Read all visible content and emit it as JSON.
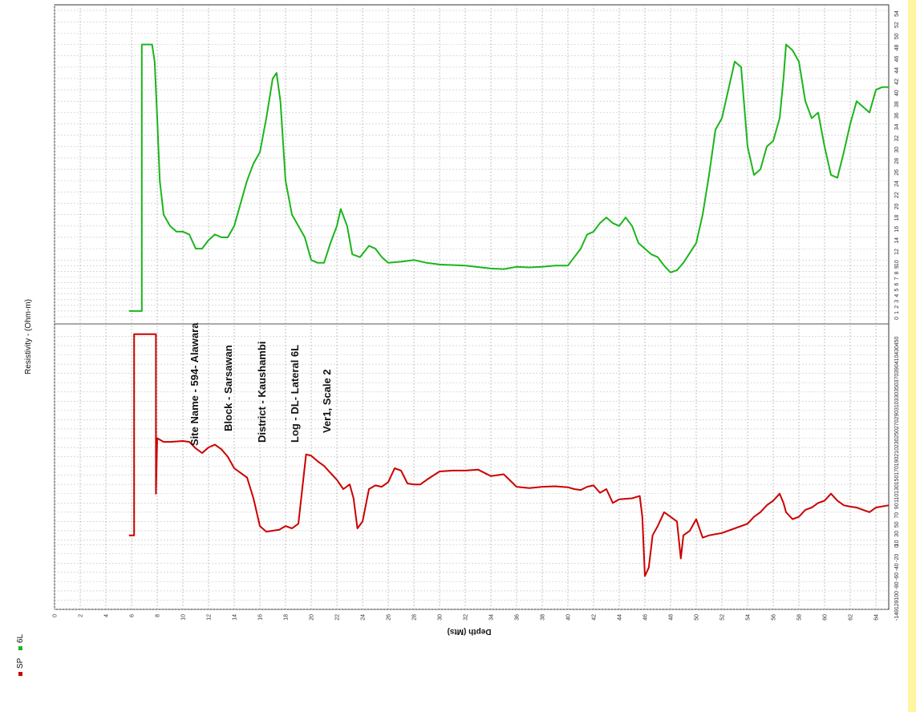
{
  "chart_data": {
    "type": "line",
    "orientation": "rotated-90-ccw",
    "xlabel": "Depth (Mts)",
    "x_ticks": [
      0,
      2,
      4,
      6,
      8,
      10,
      12,
      14,
      16,
      18,
      20,
      22,
      24,
      26,
      28,
      30,
      32,
      34,
      36,
      38,
      40,
      42,
      44,
      46,
      48,
      50,
      52,
      54,
      56,
      58,
      60,
      62,
      64
    ],
    "xlim": [
      0,
      65
    ],
    "legend": {
      "placement": "bottom-left",
      "entries": [
        {
          "name": "SP",
          "color": "#cc0000"
        },
        {
          "name": "6L",
          "color": "#1cb51c"
        }
      ]
    },
    "panels": [
      {
        "id": "resistivity",
        "ylabel": "Resistivity - (Ohm-m)",
        "ylim": [
          0,
          55
        ],
        "y_ticks": [
          0,
          1,
          2,
          3,
          4,
          5,
          6,
          7,
          8,
          9,
          10,
          12,
          14,
          16,
          18,
          20,
          22,
          24,
          26,
          28,
          30,
          32,
          34,
          36,
          38,
          40,
          42,
          44,
          46,
          48,
          50,
          52,
          54
        ],
        "series": [
          {
            "name": "6L",
            "color": "#1cb51c",
            "points": [
              [
                5.8,
                1
              ],
              [
                6.8,
                1
              ],
              [
                6.8,
                48
              ],
              [
                7.6,
                48
              ],
              [
                7.8,
                45
              ],
              [
                8.0,
                35
              ],
              [
                8.2,
                24
              ],
              [
                8.5,
                18
              ],
              [
                9.0,
                16
              ],
              [
                9.5,
                15
              ],
              [
                10.0,
                15
              ],
              [
                10.5,
                14.5
              ],
              [
                11.0,
                12
              ],
              [
                11.5,
                12
              ],
              [
                12.0,
                13.5
              ],
              [
                12.5,
                14.5
              ],
              [
                13.0,
                14
              ],
              [
                13.5,
                14
              ],
              [
                14.0,
                16
              ],
              [
                14.5,
                20
              ],
              [
                15.0,
                24
              ],
              [
                15.5,
                27
              ],
              [
                16.0,
                29
              ],
              [
                16.5,
                35
              ],
              [
                17.0,
                42
              ],
              [
                17.3,
                43
              ],
              [
                17.6,
                38
              ],
              [
                18.0,
                24
              ],
              [
                18.5,
                18
              ],
              [
                19.0,
                16
              ],
              [
                19.5,
                14
              ],
              [
                20.0,
                10
              ],
              [
                20.5,
                9.5
              ],
              [
                21.0,
                9.5
              ],
              [
                21.5,
                13
              ],
              [
                22.0,
                16
              ],
              [
                22.3,
                19
              ],
              [
                22.8,
                16
              ],
              [
                23.2,
                11
              ],
              [
                23.8,
                10.5
              ],
              [
                24.5,
                12.5
              ],
              [
                25.0,
                12
              ],
              [
                25.5,
                10.5
              ],
              [
                26.0,
                9.5
              ],
              [
                27.0,
                9.7
              ],
              [
                28.0,
                10
              ],
              [
                29.0,
                9.5
              ],
              [
                30.0,
                9.2
              ],
              [
                32.0,
                9
              ],
              [
                34.0,
                8.5
              ],
              [
                35.0,
                8.4
              ],
              [
                36.0,
                8.8
              ],
              [
                37.0,
                8.7
              ],
              [
                38.0,
                8.8
              ],
              [
                39.0,
                9
              ],
              [
                40.0,
                9
              ],
              [
                40.5,
                10.5
              ],
              [
                41.0,
                12
              ],
              [
                41.5,
                14.5
              ],
              [
                42.0,
                15
              ],
              [
                42.5,
                16.5
              ],
              [
                43.0,
                17.5
              ],
              [
                43.5,
                16.5
              ],
              [
                44.0,
                16
              ],
              [
                44.5,
                17.5
              ],
              [
                45.0,
                16
              ],
              [
                45.5,
                13
              ],
              [
                46.0,
                12
              ],
              [
                46.5,
                11
              ],
              [
                47.0,
                10.5
              ],
              [
                47.5,
                9
              ],
              [
                48.0,
                7.8
              ],
              [
                48.5,
                8.2
              ],
              [
                49.0,
                9.5
              ],
              [
                50.0,
                13
              ],
              [
                50.5,
                18
              ],
              [
                51.0,
                25
              ],
              [
                51.5,
                33
              ],
              [
                52.0,
                35
              ],
              [
                52.5,
                40
              ],
              [
                53.0,
                45
              ],
              [
                53.5,
                44
              ],
              [
                54.0,
                30
              ],
              [
                54.5,
                25
              ],
              [
                55.0,
                26
              ],
              [
                55.5,
                30
              ],
              [
                56.0,
                31
              ],
              [
                56.5,
                35
              ],
              [
                56.8,
                42
              ],
              [
                57.0,
                48
              ],
              [
                57.5,
                47
              ],
              [
                58.0,
                45
              ],
              [
                58.5,
                38
              ],
              [
                59.0,
                35
              ],
              [
                59.5,
                36
              ],
              [
                60.0,
                30
              ],
              [
                60.5,
                25
              ],
              [
                61.0,
                24.5
              ],
              [
                61.5,
                29
              ],
              [
                62.0,
                34
              ],
              [
                62.5,
                38
              ],
              [
                63.0,
                37
              ],
              [
                63.5,
                36
              ],
              [
                64.0,
                40
              ],
              [
                64.5,
                40.5
              ],
              [
                65.0,
                40.5
              ]
            ]
          }
        ]
      },
      {
        "id": "sp",
        "ylabel": "",
        "ylim": [
          -140,
          470
        ],
        "y_ticks": [
          -140,
          -120,
          -100,
          -80,
          -60,
          -40,
          -20,
          0,
          10,
          30,
          50,
          70,
          90,
          110,
          130,
          150,
          170,
          190,
          210,
          230,
          250,
          270,
          290,
          310,
          330,
          350,
          370,
          390,
          410,
          430,
          450
        ],
        "series": [
          {
            "name": "SP",
            "color": "#cc0000",
            "points": [
              [
                5.8,
                20
              ],
              [
                6.2,
                20
              ],
              [
                6.2,
                455
              ],
              [
                7.9,
                455
              ],
              [
                7.9,
                110
              ],
              [
                8.0,
                230
              ],
              [
                8.5,
                222
              ],
              [
                9.0,
                222
              ],
              [
                10.0,
                224
              ],
              [
                10.5,
                222
              ],
              [
                11.0,
                208
              ],
              [
                11.5,
                198
              ],
              [
                12.0,
                210
              ],
              [
                12.5,
                216
              ],
              [
                13.0,
                206
              ],
              [
                13.5,
                190
              ],
              [
                14.0,
                165
              ],
              [
                14.5,
                155
              ],
              [
                15.0,
                145
              ],
              [
                15.5,
                100
              ],
              [
                16.0,
                40
              ],
              [
                16.5,
                28
              ],
              [
                17.0,
                30
              ],
              [
                17.5,
                32
              ],
              [
                18.0,
                40
              ],
              [
                18.5,
                35
              ],
              [
                19.0,
                45
              ],
              [
                19.3,
                120
              ],
              [
                19.6,
                195
              ],
              [
                20.0,
                192
              ],
              [
                20.5,
                180
              ],
              [
                21.0,
                170
              ],
              [
                21.5,
                155
              ],
              [
                22.0,
                140
              ],
              [
                22.5,
                120
              ],
              [
                23.0,
                130
              ],
              [
                23.3,
                100
              ],
              [
                23.6,
                35
              ],
              [
                24.0,
                50
              ],
              [
                24.5,
                120
              ],
              [
                25.0,
                128
              ],
              [
                25.5,
                125
              ],
              [
                26.0,
                135
              ],
              [
                26.5,
                165
              ],
              [
                27.0,
                160
              ],
              [
                27.5,
                132
              ],
              [
                28.0,
                130
              ],
              [
                28.5,
                130
              ],
              [
                29.0,
                140
              ],
              [
                30.0,
                158
              ],
              [
                31.0,
                160
              ],
              [
                32.0,
                160
              ],
              [
                33.0,
                162
              ],
              [
                34.0,
                148
              ],
              [
                35.0,
                152
              ],
              [
                36.0,
                125
              ],
              [
                37.0,
                122
              ],
              [
                38.0,
                125
              ],
              [
                39.0,
                126
              ],
              [
                40.0,
                124
              ],
              [
                40.5,
                120
              ],
              [
                41.0,
                118
              ],
              [
                41.5,
                125
              ],
              [
                42.0,
                128
              ],
              [
                42.5,
                112
              ],
              [
                43.0,
                120
              ],
              [
                43.5,
                90
              ],
              [
                44.0,
                98
              ],
              [
                45.0,
                100
              ],
              [
                45.6,
                105
              ],
              [
                45.8,
                60
              ],
              [
                46.0,
                -68
              ],
              [
                46.3,
                -50
              ],
              [
                46.6,
                20
              ],
              [
                47.0,
                40
              ],
              [
                47.5,
                70
              ],
              [
                48.0,
                60
              ],
              [
                48.5,
                50
              ],
              [
                48.8,
                -30
              ],
              [
                49.0,
                20
              ],
              [
                49.5,
                30
              ],
              [
                50.0,
                55
              ],
              [
                50.5,
                15
              ],
              [
                51.0,
                20
              ],
              [
                52.0,
                25
              ],
              [
                53.0,
                35
              ],
              [
                54.0,
                45
              ],
              [
                54.5,
                60
              ],
              [
                55.0,
                70
              ],
              [
                55.5,
                85
              ],
              [
                56.0,
                95
              ],
              [
                56.5,
                110
              ],
              [
                56.8,
                90
              ],
              [
                57.0,
                70
              ],
              [
                57.5,
                55
              ],
              [
                58.0,
                60
              ],
              [
                58.5,
                75
              ],
              [
                59.0,
                80
              ],
              [
                59.5,
                90
              ],
              [
                60.0,
                95
              ],
              [
                60.5,
                110
              ],
              [
                61.0,
                95
              ],
              [
                61.5,
                85
              ],
              [
                62.0,
                82
              ],
              [
                62.5,
                80
              ],
              [
                63.0,
                75
              ],
              [
                63.5,
                70
              ],
              [
                64.0,
                80
              ],
              [
                65.0,
                85
              ]
            ]
          }
        ]
      }
    ],
    "annotations": [
      "Site Name - 594- Alawara",
      "Block - Sarsawan",
      "District - Kaushambi",
      "Log - DL- Lateral 6L",
      "Ver1, Scale 2"
    ]
  }
}
